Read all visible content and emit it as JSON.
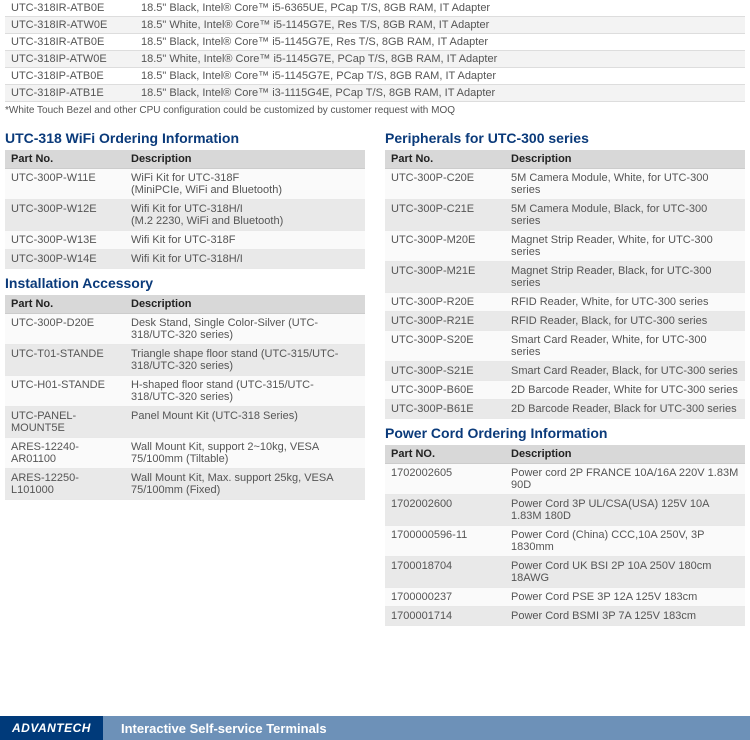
{
  "top_rows": [
    {
      "pn": "UTC-318IR-ATB0E",
      "desc": "18.5\" Black, Intel® Core™ i5-6365UE, PCap T/S, 8GB RAM, IT Adapter"
    },
    {
      "pn": "UTC-318IR-ATW0E",
      "desc": "18.5\" White, Intel® Core™ i5-1145G7E, Res T/S, 8GB RAM, IT Adapter"
    },
    {
      "pn": "UTC-318IR-ATB0E",
      "desc": "18.5\" Black, Intel® Core™ i5-1145G7E, Res T/S, 8GB RAM, IT Adapter"
    },
    {
      "pn": "UTC-318IP-ATW0E",
      "desc": "18.5\" White, Intel® Core™ i5-1145G7E, PCap T/S, 8GB RAM, IT Adapter"
    },
    {
      "pn": "UTC-318IP-ATB0E",
      "desc": "18.5\"  Black, Intel® Core™ i5-1145G7E, PCap T/S, 8GB RAM, IT Adapter"
    },
    {
      "pn": "UTC-318IP-ATB1E",
      "desc": "18.5\" Black, Intel® Core™ i3-1115G4E, PCap T/S, 8GB RAM, IT Adapter"
    }
  ],
  "footnote": "*White Touch Bezel and other CPU configuration could be customized by customer request with MOQ",
  "wifi": {
    "title": "UTC-318 WiFi Ordering Information",
    "head": {
      "c1": "Part No.",
      "c2": "Description"
    },
    "rows": [
      {
        "pn": "UTC-300P-W11E",
        "desc": "WiFi Kit for UTC-318F\n(MiniPCIe, WiFi and Bluetooth)"
      },
      {
        "pn": "UTC-300P-W12E",
        "desc": "Wifi Kit for UTC-318H/I\n(M.2 2230, WiFi and Bluetooth)"
      },
      {
        "pn": "UTC-300P-W13E",
        "desc": "Wifi Kit for UTC-318F"
      },
      {
        "pn": "UTC-300P-W14E",
        "desc": "Wifi Kit for UTC-318H/I"
      }
    ]
  },
  "install": {
    "title": "Installation Accessory",
    "head": {
      "c1": "Part No.",
      "c2": "Description"
    },
    "rows": [
      {
        "pn": "UTC-300P-D20E",
        "desc": "Desk Stand, Single Color-Silver (UTC-318/UTC-320 series)"
      },
      {
        "pn": "UTC-T01-STANDE",
        "desc": "Triangle shape floor stand (UTC-315/UTC-318/UTC-320 series)"
      },
      {
        "pn": "UTC-H01-STANDE",
        "desc": "H-shaped floor stand (UTC-315/UTC-318/UTC-320 series)"
      },
      {
        "pn": "UTC-PANEL-MOUNT5E",
        "desc": "Panel Mount Kit (UTC-318 Series)"
      },
      {
        "pn": "ARES-12240-AR01100",
        "desc": "Wall Mount Kit, support 2~10kg, VESA 75/100mm (Tiltable)"
      },
      {
        "pn": "ARES-12250-L101000",
        "desc": "Wall Mount Kit, Max. support 25kg, VESA 75/100mm (Fixed)"
      }
    ]
  },
  "periph": {
    "title": "Peripherals for UTC-300 series",
    "head": {
      "c1": "Part No.",
      "c2": "Description"
    },
    "rows": [
      {
        "pn": "UTC-300P-C20E",
        "desc": "5M Camera Module, White, for UTC-300 series"
      },
      {
        "pn": "UTC-300P-C21E",
        "desc": "5M Camera Module, Black, for UTC-300 series"
      },
      {
        "pn": "UTC-300P-M20E",
        "desc": "Magnet Strip Reader, White, for UTC-300 series"
      },
      {
        "pn": "UTC-300P-M21E",
        "desc": "Magnet Strip Reader, Black, for UTC-300 series"
      },
      {
        "pn": "UTC-300P-R20E",
        "desc": "RFID Reader, White, for UTC-300 series"
      },
      {
        "pn": "UTC-300P-R21E",
        "desc": "RFID Reader, Black, for UTC-300 series"
      },
      {
        "pn": "UTC-300P-S20E",
        "desc": "Smart Card Reader, White, for UTC-300 series"
      },
      {
        "pn": "UTC-300P-S21E",
        "desc": "Smart Card Reader, Black, for UTC-300 series"
      },
      {
        "pn": "UTC-300P-B60E",
        "desc": "2D Barcode Reader, White for UTC-300 series"
      },
      {
        "pn": "UTC-300P-B61E",
        "desc": "2D Barcode Reader, Black for UTC-300 series"
      }
    ]
  },
  "power": {
    "title": "Power Cord Ordering Information",
    "head": {
      "c1": "Part NO.",
      "c2": "Description"
    },
    "rows": [
      {
        "pn": "1702002605",
        "desc": "Power cord 2P FRANCE 10A/16A 220V 1.83M 90D"
      },
      {
        "pn": "1702002600",
        "desc": "Power Cord 3P UL/CSA(USA) 125V 10A 1.83M 180D"
      },
      {
        "pn": "1700000596-11",
        "desc": "Power Cord (China) CCC,10A 250V, 3P 1830mm"
      },
      {
        "pn": "1700018704",
        "desc": "Power Cord UK BSI 2P 10A 250V 180cm 18AWG"
      },
      {
        "pn": "1700000237",
        "desc": "Power Cord PSE 3P 12A 125V 183cm"
      },
      {
        "pn": "1700001714",
        "desc": "Power Cord BSMI 3P 7A 125V 183cm"
      }
    ]
  },
  "footer": {
    "logo": "ADVANTECH",
    "text": "Interactive Self-service Terminals"
  }
}
